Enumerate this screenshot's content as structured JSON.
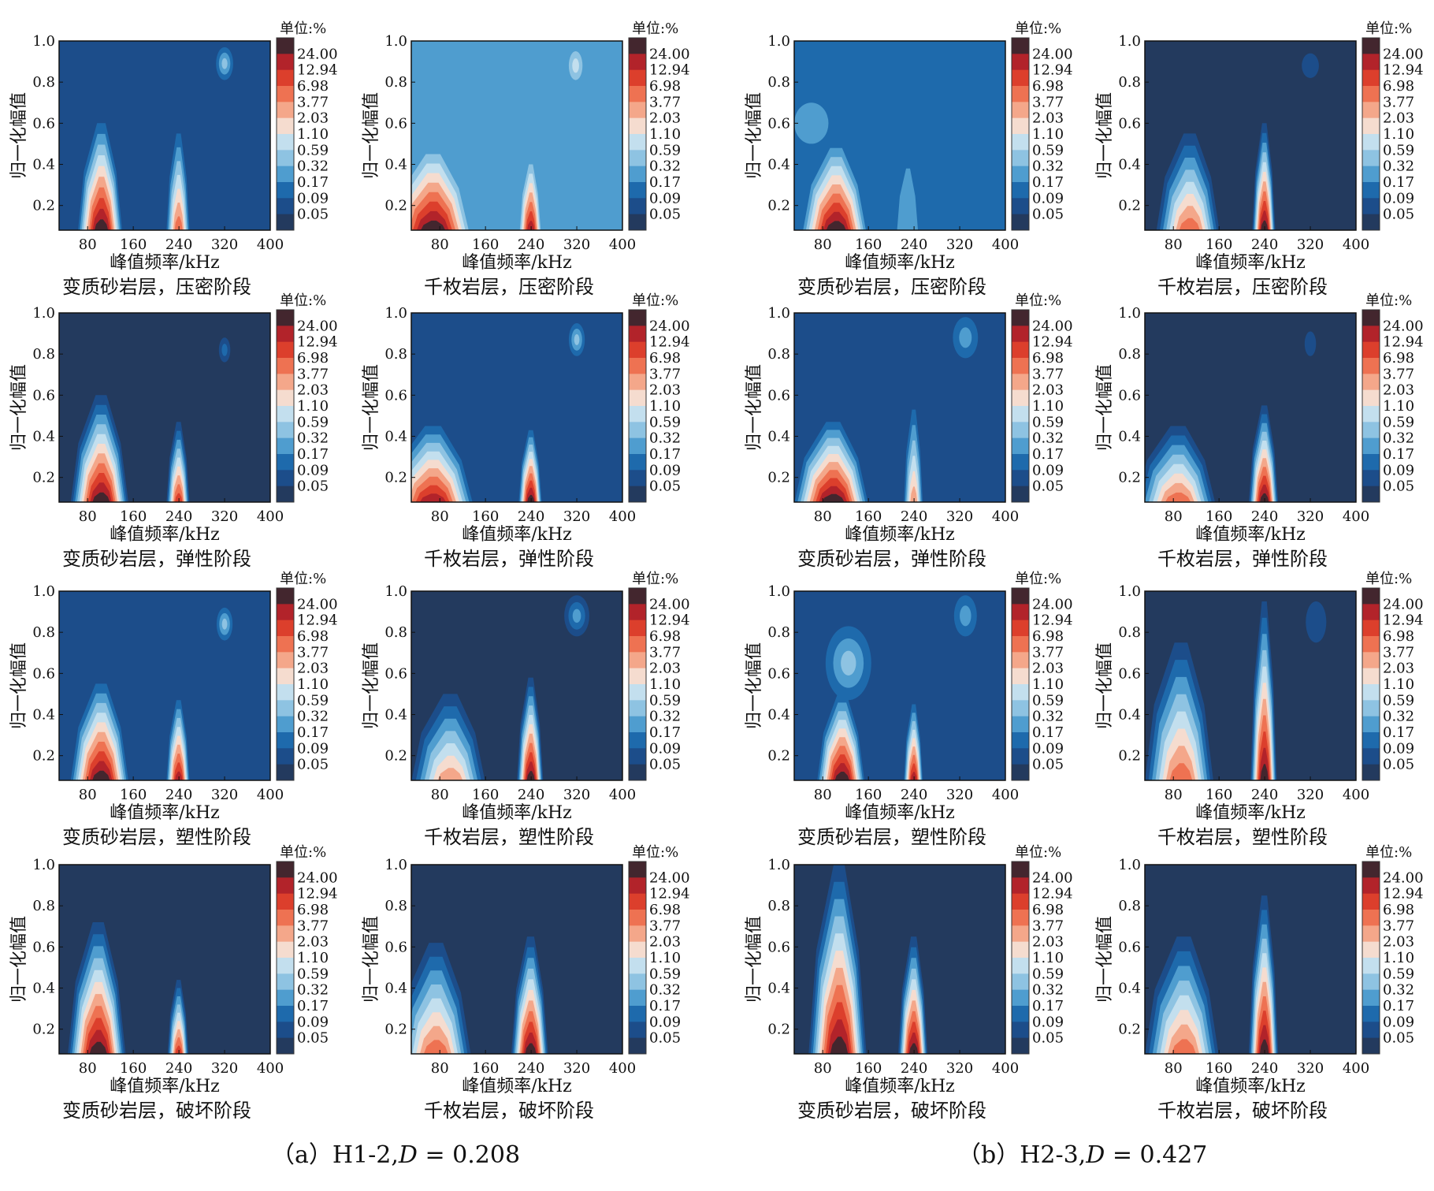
{
  "figure": {
    "captions": [
      {
        "prefix": "（a）H1-2,",
        "d_symbol": "D",
        "suffix": " = 0.208"
      },
      {
        "prefix": "（b）H2-3,",
        "d_symbol": "D",
        "suffix": " = 0.427"
      }
    ],
    "colorbar": {
      "unit_label": "单位:%",
      "labels": [
        "24.00",
        "12.94",
        "6.98",
        "3.77",
        "2.03",
        "1.10",
        "0.59",
        "0.32",
        "0.17",
        "0.09",
        "0.05"
      ],
      "colors": [
        "#43262e",
        "#b2232a",
        "#dc3f2c",
        "#ee7252",
        "#f4a78a",
        "#f5dccf",
        "#c3dfee",
        "#8ec3e2",
        "#4f9dcf",
        "#1e6aac",
        "#1c4d8a",
        "#233a5e"
      ]
    }
  },
  "chart_data": [
    {
      "type": "heatmap",
      "group": "a",
      "title": "变质砂岩层，压密阶段",
      "xlabel": "峰值频率/kHz",
      "ylabel": "归一化幅值",
      "xticks": [
        "80",
        "160",
        "240",
        "320",
        "400"
      ],
      "yticks": [
        "0.2",
        "0.4",
        "0.6",
        "0.8",
        "1.0"
      ],
      "xlim": [
        30,
        400
      ],
      "ylim": [
        0.08,
        1.0
      ],
      "background_level": 1,
      "peaks": [
        {
          "x": 105,
          "peak_level": 11,
          "x_half": 42,
          "y_top": 0.6
        },
        {
          "x": 240,
          "peak_level": 8,
          "x_half": 22,
          "y_top": 0.55
        }
      ],
      "blobs": [
        {
          "x": 320,
          "y": 0.89,
          "rx": 15,
          "ry": 0.08,
          "level": 4
        }
      ]
    },
    {
      "type": "heatmap",
      "group": "a",
      "title": "千枚岩层，压密阶段",
      "xlabel": "峰值频率/kHz",
      "ylabel": "归一化幅值",
      "xticks": [
        "80",
        "160",
        "240",
        "320",
        "400"
      ],
      "yticks": [
        "0.2",
        "0.4",
        "0.6",
        "0.8",
        "1.0"
      ],
      "xlim": [
        30,
        400
      ],
      "ylim": [
        0.08,
        1.0
      ],
      "background_level": 3,
      "peaks": [
        {
          "x": 70,
          "peak_level": 11,
          "x_half": 72,
          "y_top": 0.45
        },
        {
          "x": 240,
          "peak_level": 10,
          "x_half": 20,
          "y_top": 0.4
        }
      ],
      "blobs": [
        {
          "x": 318,
          "y": 0.88,
          "rx": 12,
          "ry": 0.07,
          "level": 5
        }
      ]
    },
    {
      "type": "heatmap",
      "group": "b",
      "title": "变质砂岩层，压密阶段",
      "xlabel": "峰值频率/kHz",
      "ylabel": "归一化幅值",
      "xticks": [
        "80",
        "160",
        "240",
        "320",
        "400"
      ],
      "yticks": [
        "0.2",
        "0.4",
        "0.6",
        "0.8",
        "1.0"
      ],
      "xlim": [
        30,
        400
      ],
      "ylim": [
        0.08,
        1.0
      ],
      "background_level": 2,
      "peaks": [
        {
          "x": 105,
          "peak_level": 11,
          "x_half": 60,
          "y_top": 0.48
        },
        {
          "x": 230,
          "peak_level": 3,
          "x_half": 20,
          "y_top": 0.38
        }
      ],
      "blobs": [
        {
          "x": 60,
          "y": 0.6,
          "rx": 30,
          "ry": 0.1,
          "level": 3
        }
      ]
    },
    {
      "type": "heatmap",
      "group": "b",
      "title": "千枚岩层，压密阶段",
      "xlabel": "峰值频率/kHz",
      "ylabel": "归一化幅值",
      "xticks": [
        "80",
        "160",
        "240",
        "320",
        "400"
      ],
      "yticks": [
        "0.2",
        "0.4",
        "0.6",
        "0.8",
        "1.0"
      ],
      "xlim": [
        30,
        400
      ],
      "ylim": [
        0.08,
        1.0
      ],
      "background_level": 0,
      "peaks": [
        {
          "x": 110,
          "peak_level": 8,
          "x_half": 60,
          "y_top": 0.55
        },
        {
          "x": 240,
          "peak_level": 11,
          "x_half": 22,
          "y_top": 0.6
        }
      ],
      "blobs": [
        {
          "x": 320,
          "y": 0.88,
          "rx": 15,
          "ry": 0.06,
          "level": 1
        }
      ]
    },
    {
      "type": "heatmap",
      "group": "a",
      "title": "变质砂岩层，弹性阶段",
      "xlabel": "峰值频率/kHz",
      "ylabel": "归一化幅值",
      "xticks": [
        "80",
        "160",
        "240",
        "320",
        "400"
      ],
      "yticks": [
        "0.2",
        "0.4",
        "0.6",
        "0.8",
        "1.0"
      ],
      "xlim": [
        30,
        400
      ],
      "ylim": [
        0.08,
        1.0
      ],
      "background_level": 0,
      "peaks": [
        {
          "x": 105,
          "peak_level": 11,
          "x_half": 55,
          "y_top": 0.6
        },
        {
          "x": 240,
          "peak_level": 9,
          "x_half": 22,
          "y_top": 0.47
        }
      ],
      "blobs": [
        {
          "x": 320,
          "y": 0.82,
          "rx": 10,
          "ry": 0.06,
          "level": 2
        }
      ]
    },
    {
      "type": "heatmap",
      "group": "a",
      "title": "千枚岩层，弹性阶段",
      "xlabel": "峰值频率/kHz",
      "ylabel": "归一化幅值",
      "xticks": [
        "80",
        "160",
        "240",
        "320",
        "400"
      ],
      "yticks": [
        "0.2",
        "0.4",
        "0.6",
        "0.8",
        "1.0"
      ],
      "xlim": [
        30,
        400
      ],
      "ylim": [
        0.08,
        1.0
      ],
      "background_level": 1,
      "peaks": [
        {
          "x": 70,
          "peak_level": 10,
          "x_half": 80,
          "y_top": 0.45
        },
        {
          "x": 240,
          "peak_level": 11,
          "x_half": 22,
          "y_top": 0.43
        }
      ],
      "blobs": [
        {
          "x": 320,
          "y": 0.87,
          "rx": 14,
          "ry": 0.08,
          "level": 4
        }
      ]
    },
    {
      "type": "heatmap",
      "group": "b",
      "title": "变质砂岩层，弹性阶段",
      "xlabel": "峰值频率/kHz",
      "ylabel": "归一化幅值",
      "xticks": [
        "80",
        "160",
        "240",
        "320",
        "400"
      ],
      "yticks": [
        "0.2",
        "0.4",
        "0.6",
        "0.8",
        "1.0"
      ],
      "xlim": [
        30,
        400
      ],
      "ylim": [
        0.08,
        1.0
      ],
      "background_level": 1,
      "peaks": [
        {
          "x": 100,
          "peak_level": 11,
          "x_half": 70,
          "y_top": 0.47
        },
        {
          "x": 240,
          "peak_level": 7,
          "x_half": 18,
          "y_top": 0.53
        }
      ],
      "blobs": [
        {
          "x": 330,
          "y": 0.88,
          "rx": 22,
          "ry": 0.1,
          "level": 3
        }
      ]
    },
    {
      "type": "heatmap",
      "group": "b",
      "title": "千枚岩层，弹性阶段",
      "xlabel": "峰值频率/kHz",
      "ylabel": "归一化幅值",
      "xticks": [
        "80",
        "160",
        "240",
        "320",
        "400"
      ],
      "yticks": [
        "0.2",
        "0.4",
        "0.6",
        "0.8",
        "1.0"
      ],
      "xlim": [
        30,
        400
      ],
      "ylim": [
        0.08,
        1.0
      ],
      "background_level": 0,
      "peaks": [
        {
          "x": 90,
          "peak_level": 8,
          "x_half": 75,
          "y_top": 0.45
        },
        {
          "x": 240,
          "peak_level": 11,
          "x_half": 28,
          "y_top": 0.55
        }
      ],
      "blobs": [
        {
          "x": 320,
          "y": 0.85,
          "rx": 10,
          "ry": 0.06,
          "level": 1
        }
      ]
    },
    {
      "type": "heatmap",
      "group": "a",
      "title": "变质砂岩层，塑性阶段",
      "xlabel": "峰值频率/kHz",
      "ylabel": "归一化幅值",
      "xticks": [
        "80",
        "160",
        "240",
        "320",
        "400"
      ],
      "yticks": [
        "0.2",
        "0.4",
        "0.6",
        "0.8",
        "1.0"
      ],
      "xlim": [
        30,
        400
      ],
      "ylim": [
        0.08,
        1.0
      ],
      "background_level": 1,
      "peaks": [
        {
          "x": 105,
          "peak_level": 11,
          "x_half": 55,
          "y_top": 0.55
        },
        {
          "x": 240,
          "peak_level": 10,
          "x_half": 22,
          "y_top": 0.47
        }
      ],
      "blobs": [
        {
          "x": 320,
          "y": 0.84,
          "rx": 14,
          "ry": 0.08,
          "level": 4
        }
      ]
    },
    {
      "type": "heatmap",
      "group": "a",
      "title": "千枚岩层，塑性阶段",
      "xlabel": "峰值频率/kHz",
      "ylabel": "归一化幅值",
      "xticks": [
        "80",
        "160",
        "240",
        "320",
        "400"
      ],
      "yticks": [
        "0.2",
        "0.4",
        "0.6",
        "0.8",
        "1.0"
      ],
      "xlim": [
        30,
        400
      ],
      "ylim": [
        0.08,
        1.0
      ],
      "background_level": 0,
      "peaks": [
        {
          "x": 100,
          "peak_level": 7,
          "x_half": 70,
          "y_top": 0.5
        },
        {
          "x": 240,
          "peak_level": 11,
          "x_half": 25,
          "y_top": 0.58
        }
      ],
      "blobs": [
        {
          "x": 320,
          "y": 0.88,
          "rx": 22,
          "ry": 0.1,
          "level": 3
        }
      ]
    },
    {
      "type": "heatmap",
      "group": "b",
      "title": "变质砂岩层，塑性阶段",
      "xlabel": "峰值频率/kHz",
      "ylabel": "归一化幅值",
      "xticks": [
        "80",
        "160",
        "240",
        "320",
        "400"
      ],
      "yticks": [
        "0.2",
        "0.4",
        "0.6",
        "0.8",
        "1.0"
      ],
      "xlim": [
        30,
        400
      ],
      "ylim": [
        0.08,
        1.0
      ],
      "background_level": 1,
      "peaks": [
        {
          "x": 115,
          "peak_level": 11,
          "x_half": 45,
          "y_top": 0.5
        },
        {
          "x": 240,
          "peak_level": 10,
          "x_half": 18,
          "y_top": 0.45
        }
      ],
      "blobs": [
        {
          "x": 125,
          "y": 0.65,
          "rx": 40,
          "ry": 0.18,
          "level": 4
        },
        {
          "x": 330,
          "y": 0.88,
          "rx": 20,
          "ry": 0.1,
          "level": 3
        }
      ]
    },
    {
      "type": "heatmap",
      "group": "b",
      "title": "千枚岩层，塑性阶段",
      "xlabel": "峰值频率/kHz",
      "ylabel": "归一化幅值",
      "xticks": [
        "80",
        "160",
        "240",
        "320",
        "400"
      ],
      "yticks": [
        "0.2",
        "0.4",
        "0.6",
        "0.8",
        "1.0"
      ],
      "xlim": [
        30,
        400
      ],
      "ylim": [
        0.08,
        1.0
      ],
      "background_level": 0,
      "peaks": [
        {
          "x": 95,
          "peak_level": 8,
          "x_half": 65,
          "y_top": 0.75
        },
        {
          "x": 240,
          "peak_level": 11,
          "x_half": 25,
          "y_top": 0.95
        }
      ],
      "blobs": [
        {
          "x": 330,
          "y": 0.85,
          "rx": 18,
          "ry": 0.1,
          "level": 1
        }
      ]
    },
    {
      "type": "heatmap",
      "group": "a",
      "title": "变质砂岩层，破坏阶段",
      "xlabel": "峰值频率/kHz",
      "ylabel": "归一化幅值",
      "xticks": [
        "80",
        "160",
        "240",
        "320",
        "400"
      ],
      "yticks": [
        "0.2",
        "0.4",
        "0.6",
        "0.8",
        "1.0"
      ],
      "xlim": [
        30,
        400
      ],
      "ylim": [
        0.08,
        1.0
      ],
      "background_level": 0,
      "peaks": [
        {
          "x": 100,
          "peak_level": 11,
          "x_half": 55,
          "y_top": 0.72
        },
        {
          "x": 240,
          "peak_level": 9,
          "x_half": 20,
          "y_top": 0.44
        }
      ],
      "blobs": []
    },
    {
      "type": "heatmap",
      "group": "a",
      "title": "千枚岩层，破坏阶段",
      "xlabel": "峰值频率/kHz",
      "ylabel": "归一化幅值",
      "xticks": [
        "80",
        "160",
        "240",
        "320",
        "400"
      ],
      "yticks": [
        "0.2",
        "0.4",
        "0.6",
        "0.8",
        "1.0"
      ],
      "xlim": [
        30,
        400
      ],
      "ylim": [
        0.08,
        1.0
      ],
      "background_level": 0,
      "peaks": [
        {
          "x": 75,
          "peak_level": 8,
          "x_half": 70,
          "y_top": 0.62
        },
        {
          "x": 240,
          "peak_level": 11,
          "x_half": 35,
          "y_top": 0.65
        }
      ],
      "blobs": []
    },
    {
      "type": "heatmap",
      "group": "b",
      "title": "变质砂岩层，破坏阶段",
      "xlabel": "峰值频率/kHz",
      "ylabel": "归一化幅值",
      "xticks": [
        "80",
        "160",
        "240",
        "320",
        "400"
      ],
      "yticks": [
        "0.2",
        "0.4",
        "0.6",
        "0.8",
        "1.0"
      ],
      "xlim": [
        30,
        400
      ],
      "ylim": [
        0.08,
        1.0
      ],
      "background_level": 0,
      "peaks": [
        {
          "x": 110,
          "peak_level": 11,
          "x_half": 55,
          "y_top": 1.0
        },
        {
          "x": 240,
          "peak_level": 11,
          "x_half": 28,
          "y_top": 0.65
        }
      ],
      "blobs": []
    },
    {
      "type": "heatmap",
      "group": "b",
      "title": "千枚岩层，破坏阶段",
      "xlabel": "峰值频率/kHz",
      "ylabel": "归一化幅值",
      "xticks": [
        "80",
        "160",
        "240",
        "320",
        "400"
      ],
      "yticks": [
        "0.2",
        "0.4",
        "0.6",
        "0.8",
        "1.0"
      ],
      "xlim": [
        30,
        400
      ],
      "ylim": [
        0.08,
        1.0
      ],
      "background_level": 0,
      "peaks": [
        {
          "x": 100,
          "peak_level": 8,
          "x_half": 70,
          "y_top": 0.65
        },
        {
          "x": 240,
          "peak_level": 11,
          "x_half": 28,
          "y_top": 0.85
        }
      ],
      "blobs": []
    }
  ]
}
